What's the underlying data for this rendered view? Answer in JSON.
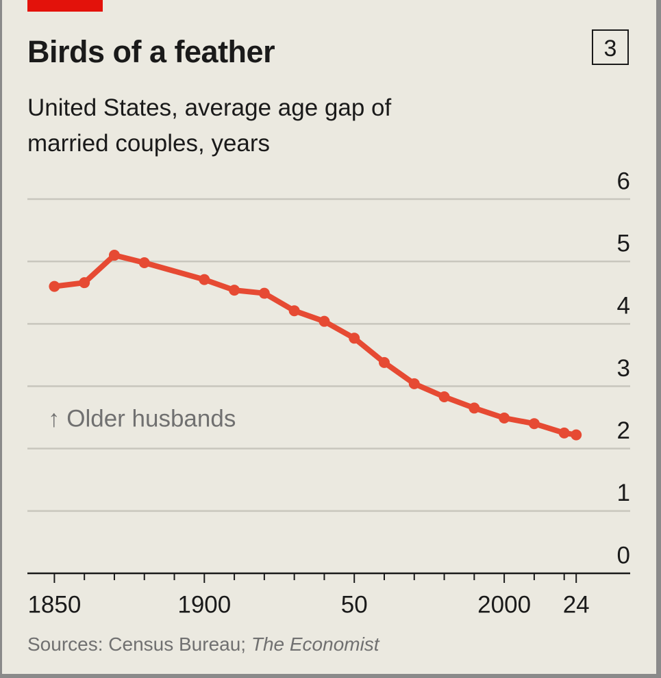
{
  "chart_data": {
    "type": "line",
    "title": "Birds of a feather",
    "badge": "3",
    "subtitle": "United States, average age gap of married couples, years",
    "annotation": "↑ Older husbands",
    "source": {
      "text": "Sources: Census Bureau;",
      "publication": "The Economist"
    },
    "x": [
      1850,
      1860,
      1870,
      1880,
      1900,
      1910,
      1920,
      1930,
      1940,
      1950,
      1960,
      1970,
      1980,
      1990,
      2000,
      2010,
      2020,
      2024
    ],
    "series": [
      {
        "name": "Average age gap",
        "color": "#e64a33",
        "values": [
          4.6,
          4.66,
          5.1,
          4.98,
          4.71,
          4.54,
          4.49,
          4.21,
          4.04,
          3.77,
          3.38,
          3.04,
          2.83,
          2.65,
          2.49,
          2.4,
          2.25,
          2.22
        ]
      }
    ],
    "xlim": [
      1841,
      2042
    ],
    "xticks": [
      1850,
      1900,
      {
        "value": 1950,
        "label": "50"
      },
      2000,
      {
        "value": 2024,
        "label": "24"
      }
    ],
    "xminorticks": [
      1860,
      1870,
      1880,
      1890,
      1910,
      1920,
      1930,
      1940,
      1960,
      1970,
      1980,
      1990,
      2010,
      2020
    ],
    "ylim": [
      0,
      6
    ],
    "yticks": [
      0,
      1,
      2,
      3,
      4,
      5,
      6
    ],
    "grid": true
  }
}
